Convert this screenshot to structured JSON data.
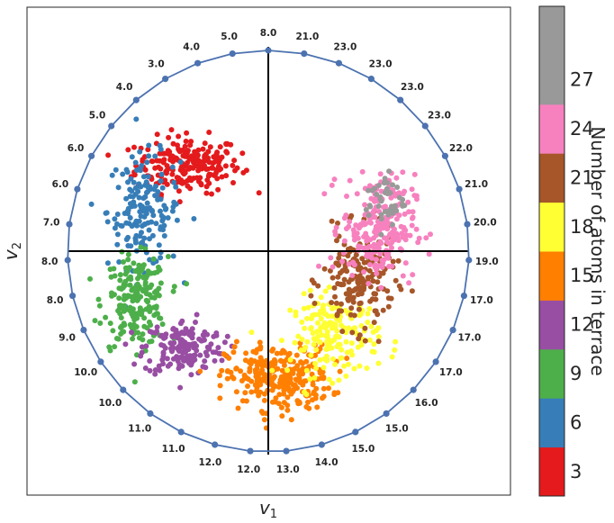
{
  "chart_data": {
    "type": "scatter",
    "title": "",
    "xlabel": "v",
    "xlabel_sub": "1",
    "ylabel": "v",
    "ylabel_sub": "2",
    "xlim": [
      -1.05,
      1.05
    ],
    "ylim": [
      -1.15,
      1.15
    ],
    "grid": false,
    "ring": {
      "radius": 1.0,
      "line_color": "#4C72B0",
      "labels": [
        "8.0",
        "21.0",
        "23.0",
        "23.0",
        "23.0",
        "23.0",
        "22.0",
        "21.0",
        "20.0",
        "19.0",
        "17.0",
        "17.0",
        "17.0",
        "16.0",
        "15.0",
        "15.0",
        "14.0",
        "13.0",
        "12.0",
        "12.0",
        "11.0",
        "11.0",
        "10.0",
        "10.0",
        "9.0",
        "8.0",
        "8.0",
        "7.0",
        "6.0",
        "6.0",
        "5.0",
        "4.0",
        "3.0",
        "4.0",
        "5.0"
      ]
    },
    "colorbar": {
      "title": "Number of atoms in terrace",
      "ticks": [
        "3",
        "6",
        "9",
        "12",
        "15",
        "18",
        "21",
        "24",
        "27"
      ],
      "colors": [
        "#e41a1c",
        "#377eb8",
        "#4daf4a",
        "#984ea3",
        "#ff7f00",
        "#ffff33",
        "#a65628",
        "#f781bf",
        "#999999"
      ],
      "has_extra_top_segment": true
    },
    "series": [
      {
        "name": "3",
        "color": "#e41a1c",
        "center": [
          -0.4,
          0.43
        ],
        "spread": [
          0.13,
          0.07
        ],
        "count": 220
      },
      {
        "name": "6",
        "color": "#377eb8",
        "center": [
          -0.62,
          0.2
        ],
        "spread": [
          0.09,
          0.14
        ],
        "count": 170
      },
      {
        "name": "9",
        "color": "#4daf4a",
        "center": [
          -0.66,
          -0.25
        ],
        "spread": [
          0.08,
          0.11
        ],
        "count": 200
      },
      {
        "name": "12",
        "color": "#984ea3",
        "center": [
          -0.42,
          -0.48
        ],
        "spread": [
          0.1,
          0.07
        ],
        "count": 170
      },
      {
        "name": "15",
        "color": "#ff7f00",
        "center": [
          0.05,
          -0.63
        ],
        "spread": [
          0.13,
          0.08
        ],
        "count": 280
      },
      {
        "name": "18",
        "color": "#ffff33",
        "center": [
          0.33,
          -0.42
        ],
        "spread": [
          0.11,
          0.1
        ],
        "count": 180
      },
      {
        "name": "21",
        "color": "#a65628",
        "center": [
          0.45,
          -0.15
        ],
        "spread": [
          0.09,
          0.12
        ],
        "count": 180
      },
      {
        "name": "24",
        "color": "#f781bf",
        "center": [
          0.55,
          0.12
        ],
        "spread": [
          0.09,
          0.13
        ],
        "count": 240
      },
      {
        "name": "27",
        "color": "#999999",
        "center": [
          0.58,
          0.25
        ],
        "spread": [
          0.05,
          0.07
        ],
        "count": 45
      }
    ]
  }
}
